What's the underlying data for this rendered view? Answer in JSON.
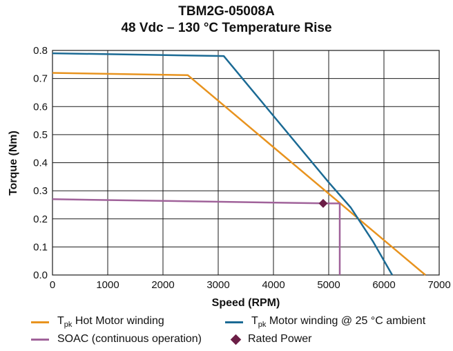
{
  "chart_data": {
    "type": "line",
    "title": "TBM2G-05008A",
    "subtitle": "48 Vdc – 130 °C Temperature Rise",
    "xlabel": "Speed (RPM)",
    "ylabel": "Torque (Nm)",
    "xlim": [
      0,
      7000
    ],
    "ylim": [
      0,
      0.8
    ],
    "xticks": [
      "0",
      "1000",
      "2000",
      "3000",
      "4000",
      "5000",
      "6000",
      "7000"
    ],
    "yticks": [
      "0.0",
      "0.1",
      "0.2",
      "0.3",
      "0.4",
      "0.5",
      "0.6",
      "0.7",
      "0.8"
    ],
    "grid": true,
    "legend_position": "bottom",
    "series": [
      {
        "name": "Tpk Hot Motor winding",
        "name_main": "T",
        "name_sub": "pk",
        "name_rest": " Hot Motor winding",
        "color": "#E8931E",
        "x": [
          0,
          2450,
          6750
        ],
        "y": [
          0.72,
          0.712,
          0.0
        ]
      },
      {
        "name": "Tpk Motor winding @ 25 °C ambient",
        "name_main": "T",
        "name_sub": "pk",
        "name_rest": " Motor winding @ 25 °C ambient",
        "color": "#1B6A94",
        "x": [
          0,
          3100,
          5000,
          5400,
          5800,
          6150
        ],
        "y": [
          0.79,
          0.78,
          0.33,
          0.24,
          0.12,
          0.0
        ]
      },
      {
        "name": "SOAC (continuous operation)",
        "color": "#A0629A",
        "x": [
          0,
          5000,
          5200,
          5200
        ],
        "y": [
          0.27,
          0.255,
          0.255,
          0.0
        ]
      }
    ],
    "markers": [
      {
        "name": "Rated Power",
        "color": "#6B1E46",
        "shape": "diamond",
        "x": 4900,
        "y": 0.255
      }
    ]
  }
}
